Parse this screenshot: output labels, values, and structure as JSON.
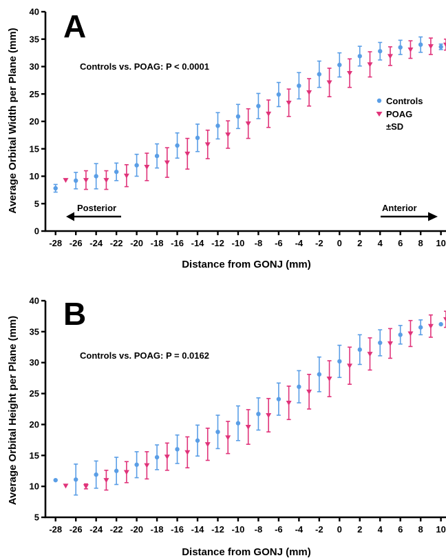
{
  "chart_data": [
    {
      "type": "scatter",
      "panel": "A",
      "ylabel": "Average Orbital Width per Plane (mm)",
      "xlabel": "Distance from GONJ (mm)",
      "annotation": "Controls vs. POAG: P < 0.0001",
      "ylim": [
        0,
        40
      ],
      "xlim": [
        -29,
        10.5
      ],
      "xticks": [
        -28,
        -26,
        -24,
        -22,
        -20,
        -18,
        -16,
        -14,
        -12,
        -10,
        -8,
        -6,
        -4,
        -2,
        0,
        2,
        4,
        6,
        8,
        10
      ],
      "yticks": [
        0,
        5,
        10,
        15,
        20,
        25,
        30,
        35,
        40
      ],
      "legend": {
        "placement": "right",
        "entries": [
          "Controls",
          "POAG"
        ],
        "extra": "±SD"
      },
      "direction_labels": {
        "left": "Posterior",
        "right": "Anterior"
      },
      "series": [
        {
          "name": "Controls",
          "color": "#5a9ee6",
          "marker": "circle",
          "points": [
            {
              "x": -28,
              "y": 7.8,
              "sd": 0.7
            },
            {
              "x": -26,
              "y": 9.2,
              "sd": 1.5
            },
            {
              "x": -24,
              "y": 10.0,
              "sd": 2.3
            },
            {
              "x": -22,
              "y": 10.8,
              "sd": 1.6
            },
            {
              "x": -20,
              "y": 12.0,
              "sd": 2.0
            },
            {
              "x": -18,
              "y": 13.7,
              "sd": 2.2
            },
            {
              "x": -16,
              "y": 15.6,
              "sd": 2.3
            },
            {
              "x": -14,
              "y": 17.0,
              "sd": 2.5
            },
            {
              "x": -12,
              "y": 19.2,
              "sd": 2.4
            },
            {
              "x": -10,
              "y": 20.9,
              "sd": 2.2
            },
            {
              "x": -8,
              "y": 22.8,
              "sd": 2.3
            },
            {
              "x": -6,
              "y": 24.9,
              "sd": 2.2
            },
            {
              "x": -4,
              "y": 26.5,
              "sd": 2.4
            },
            {
              "x": -2,
              "y": 28.6,
              "sd": 2.4
            },
            {
              "x": 0,
              "y": 30.3,
              "sd": 2.2
            },
            {
              "x": 2,
              "y": 31.9,
              "sd": 1.8
            },
            {
              "x": 4,
              "y": 32.8,
              "sd": 1.6
            },
            {
              "x": 6,
              "y": 33.5,
              "sd": 1.3
            },
            {
              "x": 8,
              "y": 34.0,
              "sd": 1.4
            },
            {
              "x": 10,
              "y": 33.6,
              "sd": 0.5
            }
          ]
        },
        {
          "name": "POAG",
          "color": "#e0337a",
          "marker": "triangle-down",
          "points": [
            {
              "x": -27,
              "y": 9.3,
              "sd": 0
            },
            {
              "x": -25,
              "y": 9.3,
              "sd": 1.7
            },
            {
              "x": -23,
              "y": 9.3,
              "sd": 1.7
            },
            {
              "x": -21,
              "y": 10.1,
              "sd": 2.0
            },
            {
              "x": -19,
              "y": 11.7,
              "sd": 2.5
            },
            {
              "x": -17,
              "y": 12.5,
              "sd": 2.7
            },
            {
              "x": -15,
              "y": 14.1,
              "sd": 2.8
            },
            {
              "x": -13,
              "y": 15.8,
              "sd": 2.6
            },
            {
              "x": -11,
              "y": 17.6,
              "sd": 2.5
            },
            {
              "x": -9,
              "y": 19.6,
              "sd": 2.7
            },
            {
              "x": -7,
              "y": 21.4,
              "sd": 2.5
            },
            {
              "x": -5,
              "y": 23.4,
              "sd": 2.5
            },
            {
              "x": -3,
              "y": 25.3,
              "sd": 2.5
            },
            {
              "x": -1,
              "y": 27.1,
              "sd": 2.6
            },
            {
              "x": 1,
              "y": 28.8,
              "sd": 2.6
            },
            {
              "x": 3,
              "y": 30.4,
              "sd": 2.3
            },
            {
              "x": 5,
              "y": 31.9,
              "sd": 1.7
            },
            {
              "x": 7,
              "y": 33.1,
              "sd": 1.6
            },
            {
              "x": 9,
              "y": 33.7,
              "sd": 1.5
            },
            {
              "x": 10.5,
              "y": 34.0,
              "sd": 1.0
            }
          ]
        }
      ]
    },
    {
      "type": "scatter",
      "panel": "B",
      "ylabel": "Average Orbital Height per Plane (mm)",
      "xlabel": "Distance from GONJ (mm)",
      "annotation": "Controls vs. POAG: P = 0.0162",
      "ylim": [
        5,
        40
      ],
      "xlim": [
        -29,
        10.5
      ],
      "xticks": [
        -28,
        -26,
        -24,
        -22,
        -20,
        -18,
        -16,
        -14,
        -12,
        -10,
        -8,
        -6,
        -4,
        -2,
        0,
        2,
        4,
        6,
        8,
        10
      ],
      "yticks": [
        5,
        10,
        15,
        20,
        25,
        30,
        35,
        40
      ],
      "series": [
        {
          "name": "Controls",
          "color": "#5a9ee6",
          "marker": "circle",
          "points": [
            {
              "x": -28,
              "y": 11.0,
              "sd": 0
            },
            {
              "x": -26,
              "y": 11.1,
              "sd": 2.5
            },
            {
              "x": -24,
              "y": 11.9,
              "sd": 2.2
            },
            {
              "x": -22,
              "y": 12.5,
              "sd": 2.2
            },
            {
              "x": -20,
              "y": 13.5,
              "sd": 2.1
            },
            {
              "x": -18,
              "y": 14.7,
              "sd": 2.0
            },
            {
              "x": -16,
              "y": 16.0,
              "sd": 2.3
            },
            {
              "x": -14,
              "y": 17.4,
              "sd": 2.5
            },
            {
              "x": -12,
              "y": 18.8,
              "sd": 2.7
            },
            {
              "x": -10,
              "y": 20.2,
              "sd": 2.8
            },
            {
              "x": -8,
              "y": 21.7,
              "sd": 2.6
            },
            {
              "x": -6,
              "y": 24.1,
              "sd": 2.6
            },
            {
              "x": -4,
              "y": 26.1,
              "sd": 2.6
            },
            {
              "x": -2,
              "y": 28.1,
              "sd": 2.8
            },
            {
              "x": 0,
              "y": 30.2,
              "sd": 2.6
            },
            {
              "x": 2,
              "y": 32.1,
              "sd": 2.4
            },
            {
              "x": 4,
              "y": 33.2,
              "sd": 2.1
            },
            {
              "x": 6,
              "y": 34.5,
              "sd": 1.5
            },
            {
              "x": 8,
              "y": 35.7,
              "sd": 1.2
            },
            {
              "x": 10,
              "y": 36.2,
              "sd": 0
            }
          ]
        },
        {
          "name": "POAG",
          "color": "#e0337a",
          "marker": "triangle-down",
          "points": [
            {
              "x": -27,
              "y": 10.1,
              "sd": 0
            },
            {
              "x": -25,
              "y": 10.0,
              "sd": 0.4
            },
            {
              "x": -23,
              "y": 11.0,
              "sd": 1.6
            },
            {
              "x": -21,
              "y": 12.3,
              "sd": 1.7
            },
            {
              "x": -19,
              "y": 13.4,
              "sd": 2.2
            },
            {
              "x": -17,
              "y": 14.8,
              "sd": 2.2
            },
            {
              "x": -15,
              "y": 15.5,
              "sd": 2.5
            },
            {
              "x": -13,
              "y": 16.8,
              "sd": 2.6
            },
            {
              "x": -11,
              "y": 17.9,
              "sd": 2.6
            },
            {
              "x": -9,
              "y": 19.6,
              "sd": 2.8
            },
            {
              "x": -7,
              "y": 21.5,
              "sd": 2.7
            },
            {
              "x": -5,
              "y": 23.5,
              "sd": 2.7
            },
            {
              "x": -3,
              "y": 25.3,
              "sd": 2.8
            },
            {
              "x": -1,
              "y": 27.4,
              "sd": 2.9
            },
            {
              "x": 1,
              "y": 29.5,
              "sd": 3.0
            },
            {
              "x": 3,
              "y": 31.4,
              "sd": 2.6
            },
            {
              "x": 5,
              "y": 33.1,
              "sd": 2.4
            },
            {
              "x": 7,
              "y": 34.7,
              "sd": 2.1
            },
            {
              "x": 9,
              "y": 35.9,
              "sd": 1.8
            },
            {
              "x": 10.5,
              "y": 37.0,
              "sd": 1.3
            }
          ]
        }
      ]
    }
  ]
}
